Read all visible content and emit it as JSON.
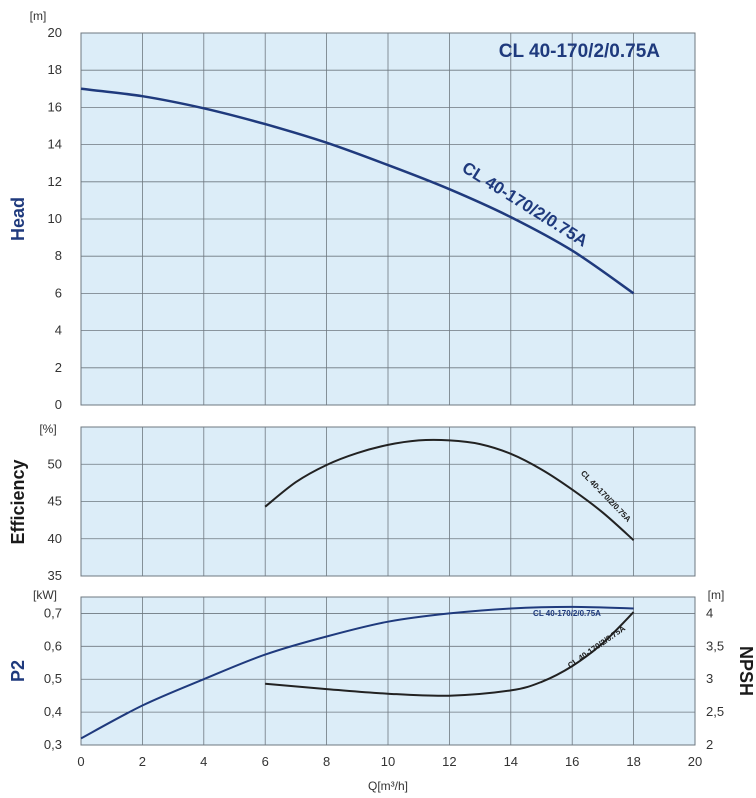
{
  "colors": {
    "panel_bg": "#dcedf8",
    "grid": "#6e7880",
    "blue_curve": "#1f3a7d",
    "black_curve": "#222222",
    "title_blue": "#1f3a7d",
    "efficiency_label": "#1a1a1a"
  },
  "chart_data": [
    {
      "type": "line",
      "panel": "head",
      "title": "CL 40-170/2/0.75A",
      "ylabel": "Head",
      "yunit": "[m]",
      "xlim": [
        0,
        20
      ],
      "ylim": [
        0,
        20
      ],
      "xticks": [
        "0",
        "2",
        "4",
        "6",
        "8",
        "10",
        "12",
        "14",
        "16",
        "18",
        "20"
      ],
      "yticks": [
        "0",
        "2",
        "4",
        "6",
        "8",
        "10",
        "12",
        "14",
        "16",
        "18",
        "20"
      ],
      "grid": true,
      "series": [
        {
          "name": "CL 40-170/2/0.75A",
          "x": [
            0,
            2,
            4,
            6,
            8,
            10,
            12,
            14,
            16,
            18
          ],
          "y": [
            17.0,
            16.6,
            15.95,
            15.1,
            14.1,
            12.9,
            11.6,
            10.1,
            8.3,
            6.0
          ]
        }
      ]
    },
    {
      "type": "line",
      "panel": "efficiency",
      "ylabel": "Efficiency",
      "yunit": "[%]",
      "xlim": [
        0,
        20
      ],
      "ylim": [
        35,
        55
      ],
      "yticks": [
        "35",
        "40",
        "45",
        "50"
      ],
      "grid": true,
      "series": [
        {
          "name": "CL 40-170/2/0.75A",
          "x": [
            6,
            7,
            8,
            9,
            10,
            11,
            12,
            13,
            14,
            15,
            16,
            17,
            18
          ],
          "y": [
            44.3,
            47.6,
            49.9,
            51.5,
            52.6,
            53.2,
            53.2,
            52.7,
            51.4,
            49.3,
            46.6,
            43.5,
            39.8
          ]
        }
      ]
    },
    {
      "type": "line",
      "panel": "power_npsh",
      "ylabel": "P2",
      "yunit": "[kW]",
      "y2label": "NPSH",
      "y2unit": "[m]",
      "xlabel": "Q[m³/h]",
      "xlim": [
        0,
        20
      ],
      "ylim": [
        0.3,
        0.75
      ],
      "yticks": [
        "0,3",
        "0,4",
        "0,5",
        "0,6",
        "0,7"
      ],
      "y2lim": [
        2,
        4.25
      ],
      "y2ticks": [
        "2",
        "2,5",
        "3",
        "3,5",
        "4"
      ],
      "grid": true,
      "series": [
        {
          "name": "CL 40-170/2/0.75A",
          "quantity": "P2",
          "x": [
            0,
            2,
            4,
            6,
            8,
            10,
            12,
            14,
            16,
            18
          ],
          "y": [
            0.32,
            0.42,
            0.5,
            0.575,
            0.63,
            0.675,
            0.7,
            0.715,
            0.72,
            0.715
          ]
        },
        {
          "name": "CL 40-170/2/0.75A",
          "quantity": "NPSH",
          "x": [
            6,
            8,
            10,
            12,
            14,
            15,
            16,
            17,
            18
          ],
          "y": [
            2.93,
            2.85,
            2.78,
            2.75,
            2.83,
            2.96,
            3.2,
            3.55,
            4.02
          ]
        }
      ]
    }
  ]
}
